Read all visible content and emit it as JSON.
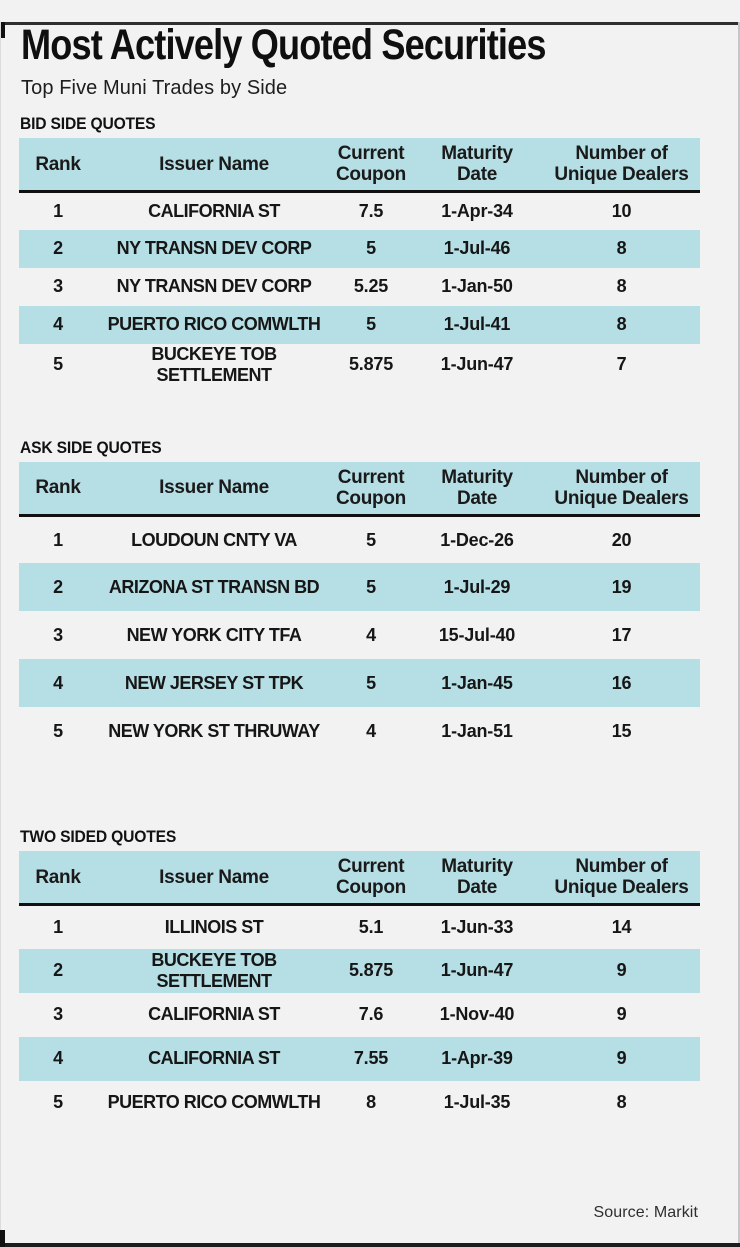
{
  "header": {
    "title": "Most Actively Quoted Securities",
    "subtitle": "Top Five Muni Trades by Side"
  },
  "footer": {
    "source": "Source: Markit"
  },
  "colors": {
    "accent_row_fill": "#b5dfe5",
    "background": "#f2f2f3",
    "text": "#1a1a1a",
    "rule": "#1c1c1c"
  },
  "chart_data": [
    {
      "type": "table",
      "title": "BID SIDE QUOTES",
      "columns": [
        "Rank",
        "Issuer Name",
        "Current\nCoupon",
        "Maturity\nDate",
        "Number of\nUnique Dealers"
      ],
      "rows": [
        [
          "1",
          "CALIFORNIA ST",
          "7.5",
          "1-Apr-34",
          "10"
        ],
        [
          "2",
          "NY TRANSN DEV CORP",
          "5",
          "1-Jul-46",
          "8"
        ],
        [
          "3",
          "NY TRANSN DEV CORP",
          "5.25",
          "1-Jan-50",
          "8"
        ],
        [
          "4",
          "PUERTO RICO COMWLTH",
          "5",
          "1-Jul-41",
          "8"
        ],
        [
          "5",
          "BUCKEYE TOB SETTLEMENT",
          "5.875",
          "1-Jun-47",
          "7"
        ]
      ]
    },
    {
      "type": "table",
      "title": "ASK SIDE QUOTES",
      "columns": [
        "Rank",
        "Issuer Name",
        "Current\nCoupon",
        "Maturity\nDate",
        "Number of\nUnique Dealers"
      ],
      "rows": [
        [
          "1",
          "LOUDOUN CNTY VA",
          "5",
          "1-Dec-26",
          "20"
        ],
        [
          "2",
          "ARIZONA ST TRANSN BD",
          "5",
          "1-Jul-29",
          "19"
        ],
        [
          "3",
          "NEW YORK CITY TFA",
          "4",
          "15-Jul-40",
          "17"
        ],
        [
          "4",
          "NEW JERSEY ST TPK",
          "5",
          "1-Jan-45",
          "16"
        ],
        [
          "5",
          "NEW YORK ST THRUWAY",
          "4",
          "1-Jan-51",
          "15"
        ]
      ]
    },
    {
      "type": "table",
      "title": "TWO SIDED QUOTES",
      "columns": [
        "Rank",
        "Issuer Name",
        "Current\nCoupon",
        "Maturity\nDate",
        "Number of\nUnique Dealers"
      ],
      "rows": [
        [
          "1",
          "ILLINOIS ST",
          "5.1",
          "1-Jun-33",
          "14"
        ],
        [
          "2",
          "BUCKEYE TOB SETTLEMENT",
          "5.875",
          "1-Jun-47",
          "9"
        ],
        [
          "3",
          "CALIFORNIA ST",
          "7.6",
          "1-Nov-40",
          "9"
        ],
        [
          "4",
          "CALIFORNIA ST",
          "7.55",
          "1-Apr-39",
          "9"
        ],
        [
          "5",
          "PUERTO RICO COMWLTH",
          "8",
          "1-Jul-35",
          "8"
        ]
      ]
    }
  ]
}
